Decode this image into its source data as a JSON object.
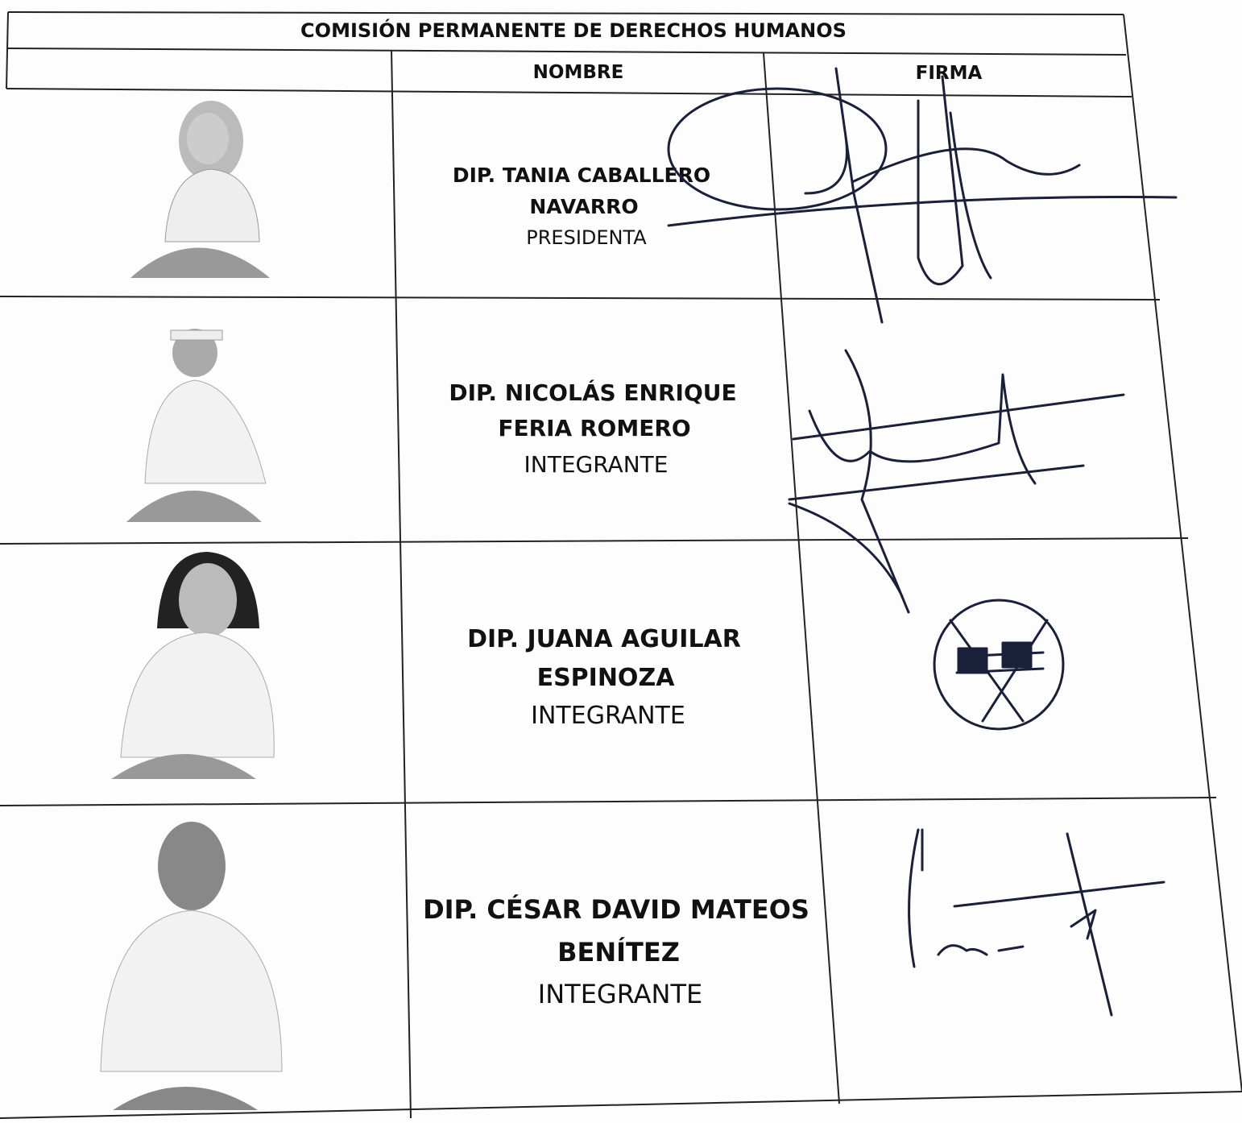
{
  "title": "COMISIÓN PERMANENTE DE DERECHOS HUMANOS",
  "headers": {
    "nombre": "NOMBRE",
    "firma": "FIRMA"
  },
  "rows": [
    {
      "name_lines": [
        "DIP. TANIA CABALLERO",
        "NAVARRO"
      ],
      "role": "PRESIDENTA"
    },
    {
      "name_lines": [
        "DIP. NICOLÁS ENRIQUE",
        "FERIA ROMERO"
      ],
      "role": "INTEGRANTE"
    },
    {
      "name_lines": [
        "DIP. JUANA AGUILAR",
        "ESPINOZA"
      ],
      "role": "INTEGRANTE"
    },
    {
      "name_lines": [
        "DIP. CÉSAR DAVID MATEOS",
        "BENÍTEZ"
      ],
      "role": "INTEGRANTE"
    }
  ]
}
